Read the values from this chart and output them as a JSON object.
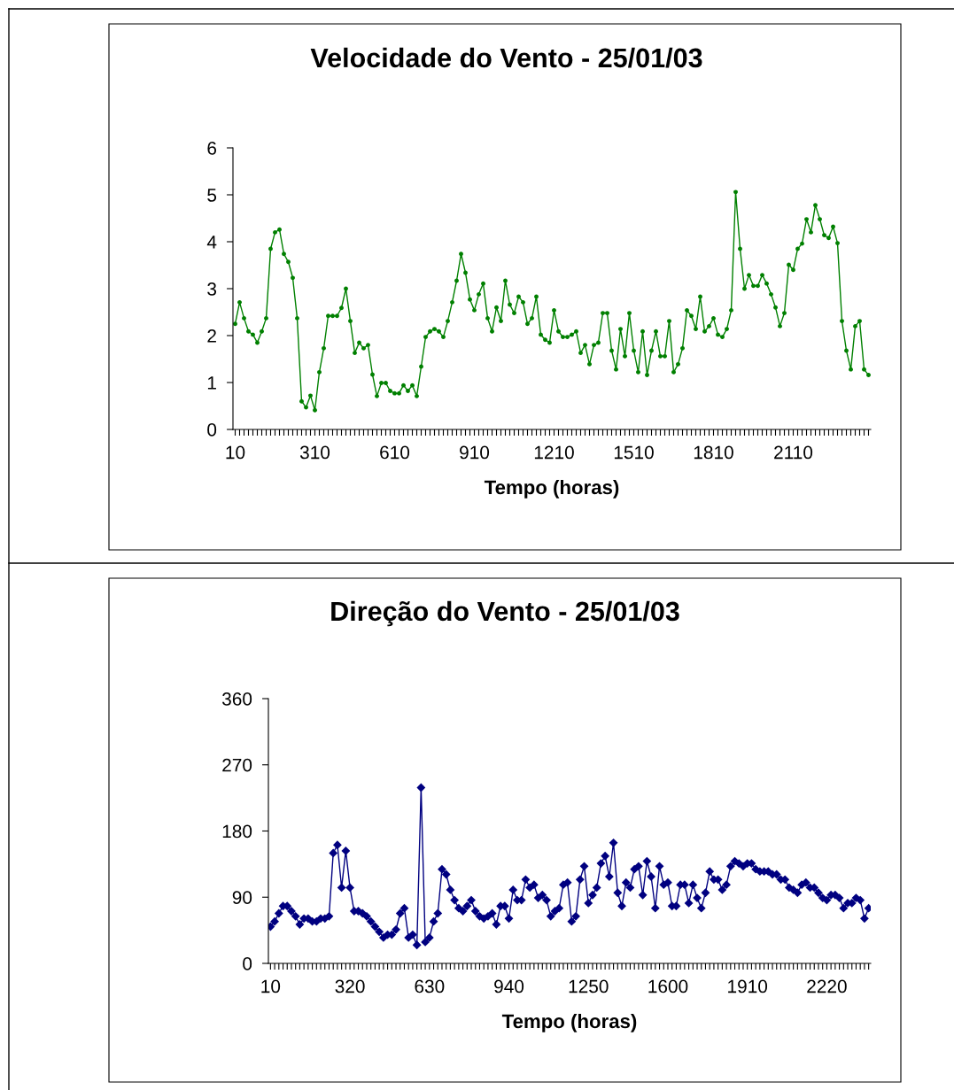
{
  "chart_data": [
    {
      "type": "line",
      "title": "Velocidade do Vento - 25/01/03",
      "xlabel": "Tempo (horas)",
      "marker": "circle",
      "line_style": "solid",
      "grid": false,
      "ylim": [
        0,
        6
      ],
      "yticks": [
        0,
        1,
        2,
        3,
        4,
        5,
        6
      ],
      "categories": [
        "10",
        null,
        null,
        null,
        null,
        null,
        null,
        null,
        null,
        null,
        null,
        null,
        null,
        null,
        null,
        null,
        null,
        null,
        "310",
        null,
        null,
        null,
        null,
        null,
        null,
        null,
        null,
        null,
        null,
        null,
        null,
        null,
        null,
        null,
        null,
        null,
        "610",
        null,
        null,
        null,
        null,
        null,
        null,
        null,
        null,
        null,
        null,
        null,
        null,
        null,
        null,
        null,
        null,
        null,
        "910",
        null,
        null,
        null,
        null,
        null,
        null,
        null,
        null,
        null,
        null,
        null,
        null,
        null,
        null,
        null,
        null,
        null,
        "1210",
        null,
        null,
        null,
        null,
        null,
        null,
        null,
        null,
        null,
        null,
        null,
        null,
        null,
        null,
        null,
        null,
        null,
        "1510",
        null,
        null,
        null,
        null,
        null,
        null,
        null,
        null,
        null,
        null,
        null,
        null,
        null,
        null,
        null,
        null,
        null,
        "1810",
        null,
        null,
        null,
        null,
        null,
        null,
        null,
        null,
        null,
        null,
        null,
        null,
        null,
        null,
        null,
        null,
        null,
        "2110",
        null,
        null,
        null,
        null,
        null,
        null,
        null,
        null,
        null,
        null,
        null,
        null,
        null,
        null,
        null,
        null,
        null
      ],
      "series": [
        {
          "color": "#008000",
          "values": [
            2.25,
            2.71,
            2.37,
            2.09,
            2.02,
            1.85,
            2.09,
            2.37,
            3.85,
            4.2,
            4.26,
            3.74,
            3.57,
            3.23,
            2.37,
            0.6,
            0.47,
            0.72,
            0.41,
            1.22,
            1.73,
            2.42,
            2.42,
            2.42,
            2.59,
            3.0,
            2.31,
            1.63,
            1.85,
            1.73,
            1.8,
            1.17,
            0.71,
            0.99,
            0.99,
            0.82,
            0.77,
            0.77,
            0.94,
            0.82,
            0.94,
            0.71,
            1.34,
            1.97,
            2.09,
            2.14,
            2.09,
            1.97,
            2.31,
            2.71,
            3.17,
            3.74,
            3.34,
            2.77,
            2.54,
            2.88,
            3.11,
            2.37,
            2.09,
            2.6,
            2.31,
            3.17,
            2.66,
            2.48,
            2.83,
            2.71,
            2.25,
            2.37,
            2.83,
            2.02,
            1.91,
            1.85,
            2.54,
            2.09,
            1.97,
            1.97,
            2.02,
            2.09,
            1.63,
            1.8,
            1.39,
            1.8,
            1.85,
            2.48,
            2.48,
            1.68,
            1.28,
            2.14,
            1.56,
            2.48,
            1.68,
            1.22,
            2.09,
            1.16,
            1.68,
            2.09,
            1.56,
            1.56,
            2.31,
            1.22,
            1.39,
            1.73,
            2.54,
            2.42,
            2.14,
            2.83,
            2.09,
            2.2,
            2.37,
            2.02,
            1.97,
            2.14,
            2.54,
            5.06,
            3.85,
            3.0,
            3.29,
            3.06,
            3.06,
            3.29,
            3.11,
            2.88,
            2.6,
            2.2,
            2.48,
            3.51,
            3.4,
            3.85,
            3.96,
            4.48,
            4.2,
            4.78,
            4.48,
            4.14,
            4.08,
            4.32,
            3.97,
            2.31,
            1.68,
            1.28,
            2.2,
            2.31,
            1.28,
            1.16
          ]
        }
      ]
    },
    {
      "type": "line",
      "title": "Direção do Vento - 25/01/03",
      "xlabel": "Tempo (horas)",
      "marker": "diamond",
      "line_style": "solid",
      "grid": false,
      "ylim": [
        0,
        360
      ],
      "yticks": [
        0,
        90,
        180,
        270,
        360
      ],
      "categories": [
        "10",
        null,
        null,
        null,
        null,
        null,
        null,
        null,
        null,
        null,
        null,
        null,
        null,
        null,
        null,
        null,
        null,
        null,
        null,
        "320",
        null,
        null,
        null,
        null,
        null,
        null,
        null,
        null,
        null,
        null,
        null,
        null,
        null,
        null,
        null,
        null,
        null,
        null,
        "630",
        null,
        null,
        null,
        null,
        null,
        null,
        null,
        null,
        null,
        null,
        null,
        null,
        null,
        null,
        null,
        null,
        null,
        null,
        "940",
        null,
        null,
        null,
        null,
        null,
        null,
        null,
        null,
        null,
        null,
        null,
        null,
        null,
        null,
        null,
        null,
        null,
        null,
        "1250",
        null,
        null,
        null,
        null,
        null,
        null,
        null,
        null,
        null,
        null,
        null,
        null,
        null,
        null,
        null,
        null,
        null,
        null,
        "1600",
        null,
        null,
        null,
        null,
        null,
        null,
        null,
        null,
        null,
        null,
        null,
        null,
        null,
        null,
        null,
        null,
        null,
        null,
        "1910",
        null,
        null,
        null,
        null,
        null,
        null,
        null,
        null,
        null,
        null,
        null,
        null,
        null,
        null,
        null,
        null,
        null,
        null,
        "2220",
        null,
        null,
        null,
        null,
        null,
        null,
        null,
        null,
        null,
        null
      ],
      "series": [
        {
          "color": "#000080",
          "values": [
            50,
            57,
            68,
            78,
            78,
            71,
            64,
            53,
            61,
            61,
            57,
            57,
            61,
            61,
            64,
            150,
            161,
            103,
            153,
            103,
            71,
            71,
            68,
            64,
            57,
            50,
            43,
            35,
            39,
            39,
            46,
            68,
            75,
            35,
            39,
            25,
            239,
            29,
            35,
            57,
            68,
            128,
            121,
            100,
            86,
            75,
            71,
            78,
            86,
            71,
            64,
            61,
            64,
            68,
            53,
            78,
            78,
            61,
            100,
            86,
            86,
            114,
            103,
            107,
            89,
            93,
            86,
            64,
            71,
            75,
            107,
            110,
            57,
            64,
            114,
            132,
            82,
            93,
            103,
            136,
            146,
            118,
            164,
            96,
            78,
            110,
            103,
            128,
            132,
            93,
            139,
            118,
            75,
            132,
            107,
            110,
            78,
            78,
            107,
            107,
            82,
            107,
            89,
            75,
            96,
            125,
            114,
            114,
            100,
            107,
            132,
            139,
            136,
            132,
            136,
            136,
            128,
            125,
            125,
            125,
            121,
            121,
            114,
            114,
            103,
            100,
            96,
            107,
            110,
            103,
            103,
            96,
            89,
            86,
            93,
            93,
            89,
            75,
            82,
            82,
            89,
            86,
            61,
            75
          ]
        }
      ]
    }
  ]
}
